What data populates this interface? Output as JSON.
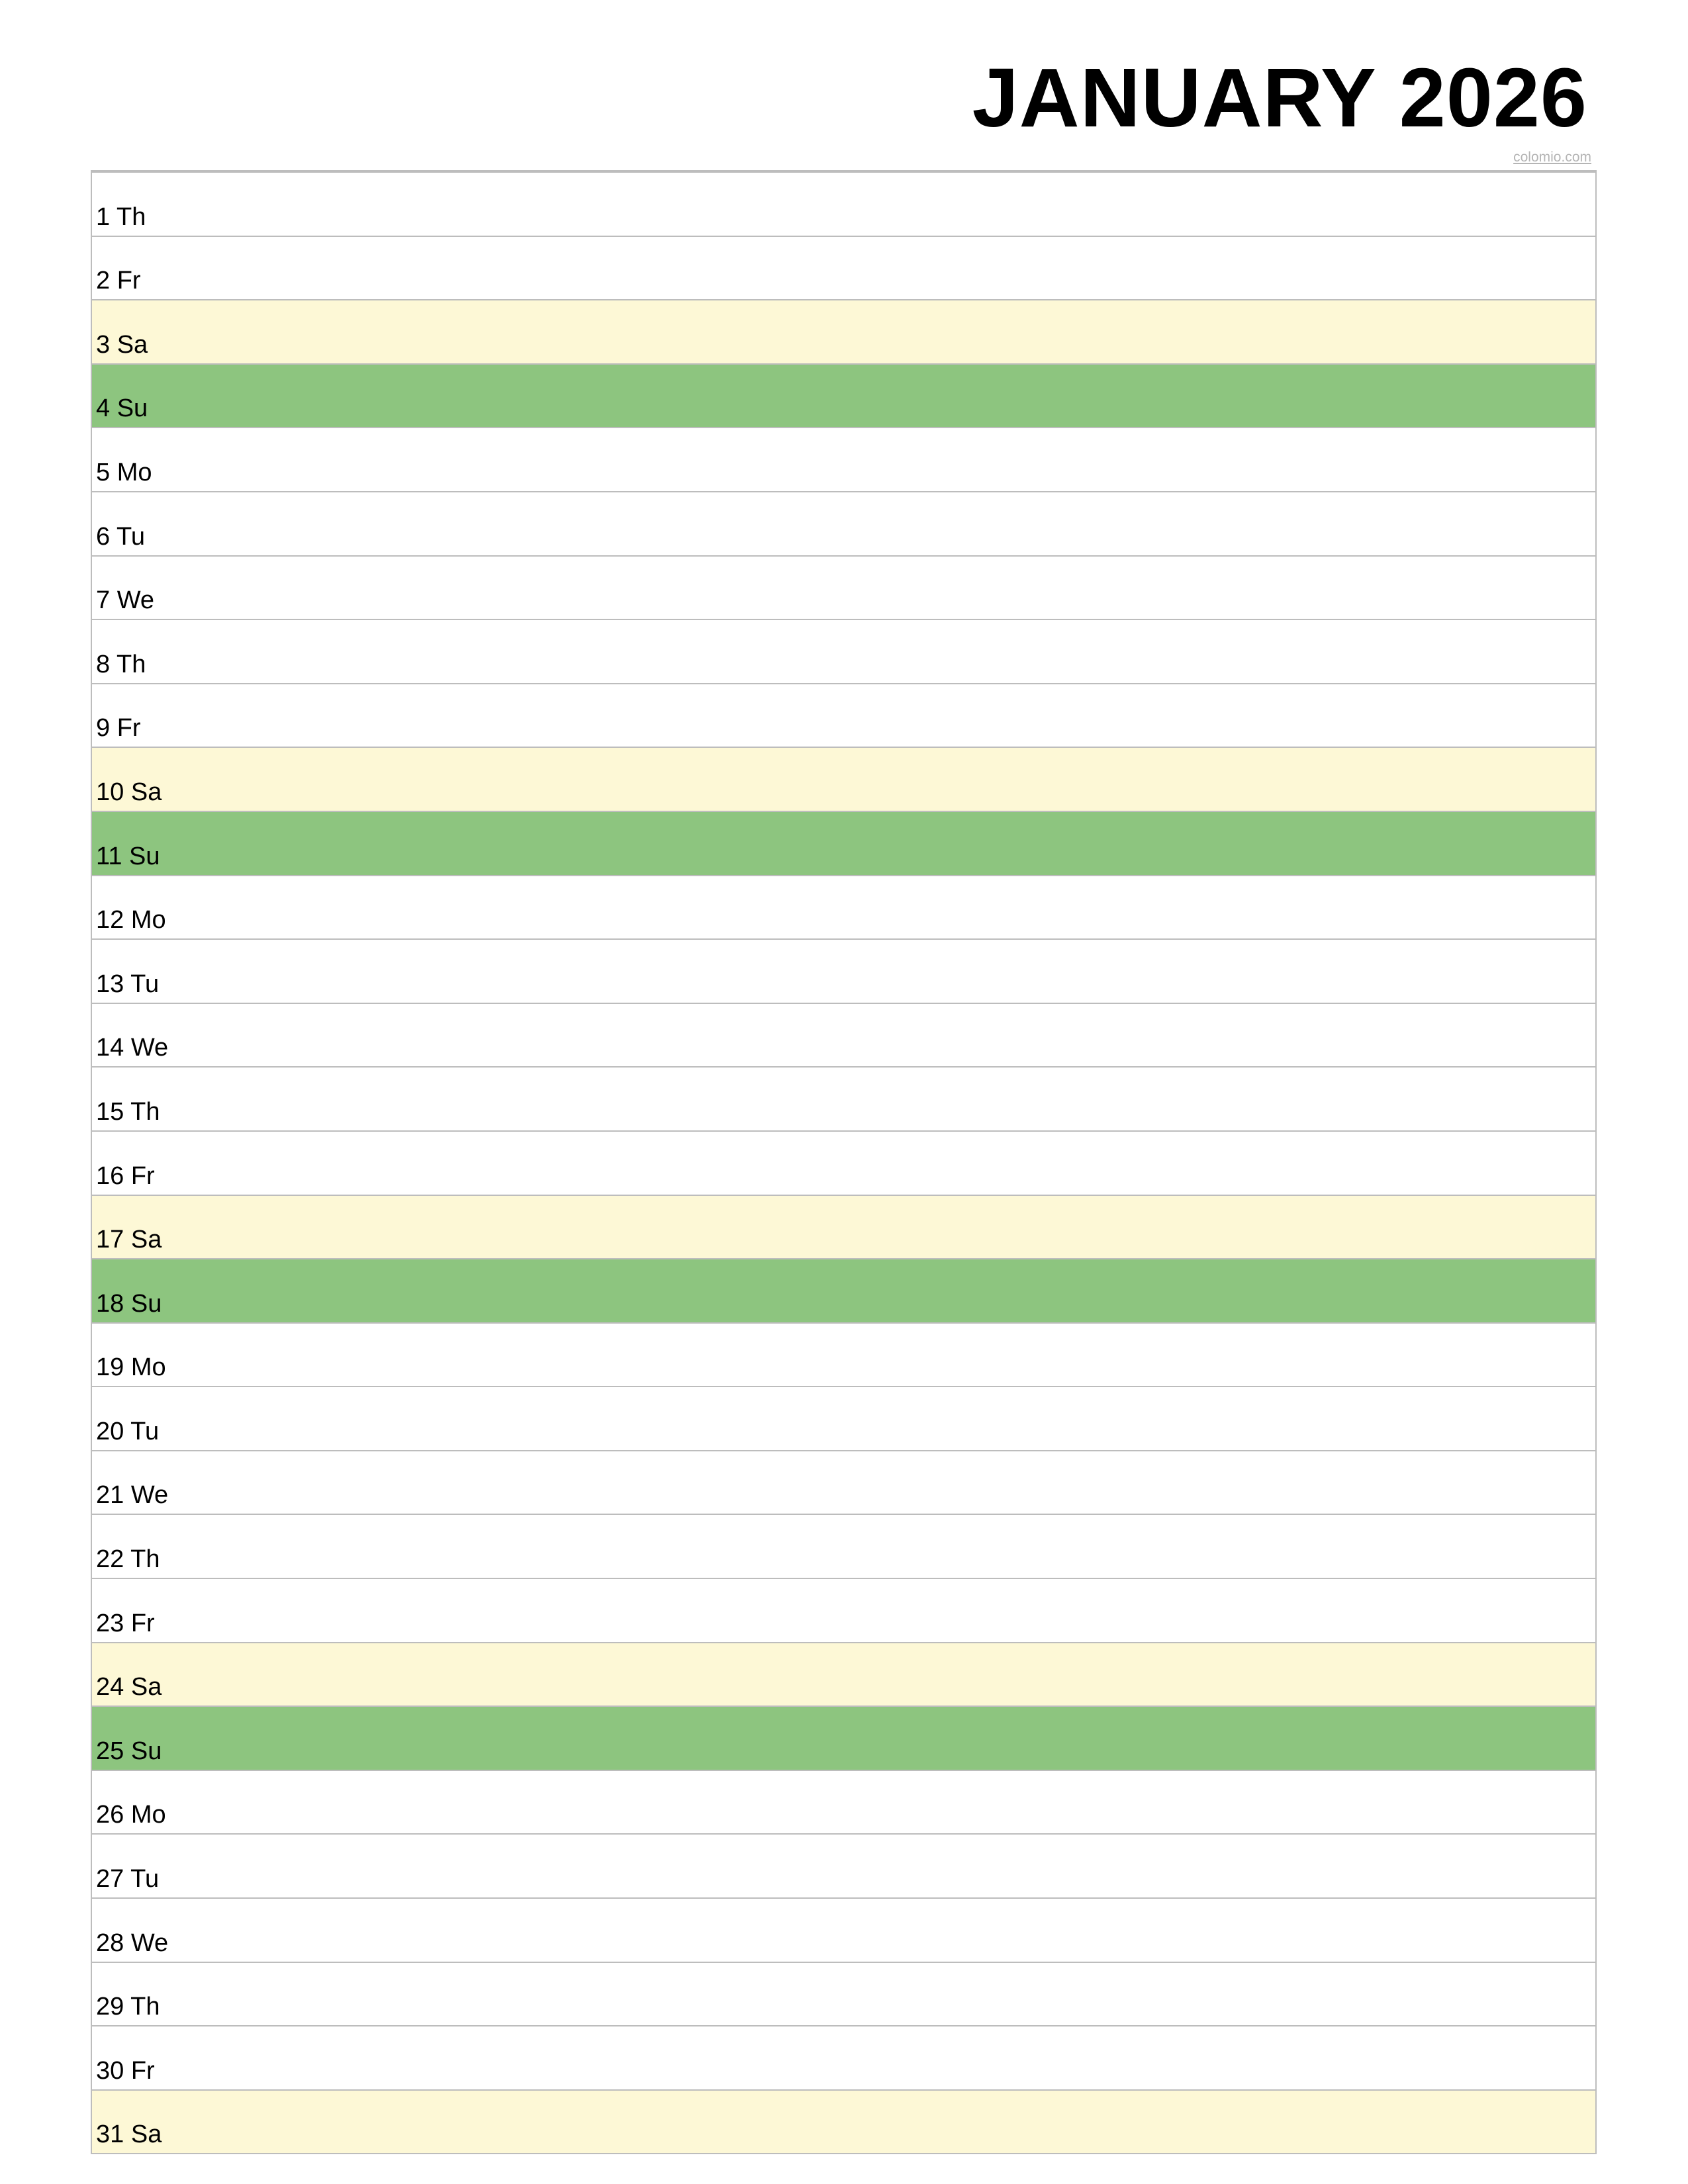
{
  "title": "JANUARY 2026",
  "source": "colomio.com",
  "colors": {
    "weekday": "#ffffff",
    "saturday": "#fdf8d6",
    "sunday": "#8dc57f",
    "grid": "#bdbdbd"
  },
  "days": [
    {
      "num": "1",
      "name": "Th",
      "kind": "weekday"
    },
    {
      "num": "2",
      "name": "Fr",
      "kind": "weekday"
    },
    {
      "num": "3",
      "name": "Sa",
      "kind": "sat"
    },
    {
      "num": "4",
      "name": "Su",
      "kind": "sun"
    },
    {
      "num": "5",
      "name": "Mo",
      "kind": "weekday"
    },
    {
      "num": "6",
      "name": "Tu",
      "kind": "weekday"
    },
    {
      "num": "7",
      "name": "We",
      "kind": "weekday"
    },
    {
      "num": "8",
      "name": "Th",
      "kind": "weekday"
    },
    {
      "num": "9",
      "name": "Fr",
      "kind": "weekday"
    },
    {
      "num": "10",
      "name": "Sa",
      "kind": "sat"
    },
    {
      "num": "11",
      "name": "Su",
      "kind": "sun"
    },
    {
      "num": "12",
      "name": "Mo",
      "kind": "weekday"
    },
    {
      "num": "13",
      "name": "Tu",
      "kind": "weekday"
    },
    {
      "num": "14",
      "name": "We",
      "kind": "weekday"
    },
    {
      "num": "15",
      "name": "Th",
      "kind": "weekday"
    },
    {
      "num": "16",
      "name": "Fr",
      "kind": "weekday"
    },
    {
      "num": "17",
      "name": "Sa",
      "kind": "sat"
    },
    {
      "num": "18",
      "name": "Su",
      "kind": "sun"
    },
    {
      "num": "19",
      "name": "Mo",
      "kind": "weekday"
    },
    {
      "num": "20",
      "name": "Tu",
      "kind": "weekday"
    },
    {
      "num": "21",
      "name": "We",
      "kind": "weekday"
    },
    {
      "num": "22",
      "name": "Th",
      "kind": "weekday"
    },
    {
      "num": "23",
      "name": "Fr",
      "kind": "weekday"
    },
    {
      "num": "24",
      "name": "Sa",
      "kind": "sat"
    },
    {
      "num": "25",
      "name": "Su",
      "kind": "sun"
    },
    {
      "num": "26",
      "name": "Mo",
      "kind": "weekday"
    },
    {
      "num": "27",
      "name": "Tu",
      "kind": "weekday"
    },
    {
      "num": "28",
      "name": "We",
      "kind": "weekday"
    },
    {
      "num": "29",
      "name": "Th",
      "kind": "weekday"
    },
    {
      "num": "30",
      "name": "Fr",
      "kind": "weekday"
    },
    {
      "num": "31",
      "name": "Sa",
      "kind": "sat"
    }
  ]
}
